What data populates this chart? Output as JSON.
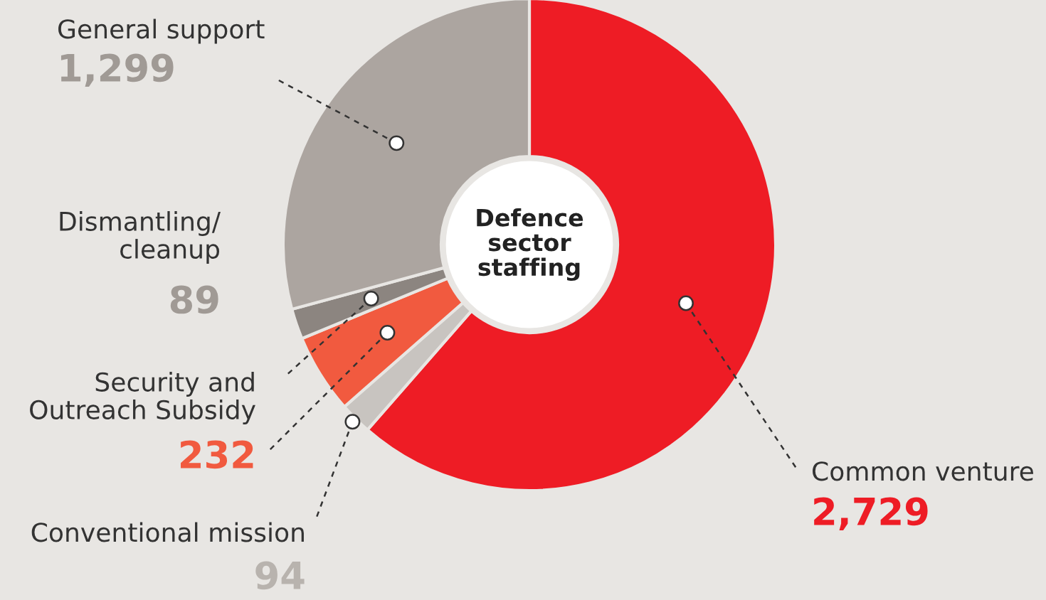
{
  "chart_data": {
    "type": "donut",
    "title": "Defence sector staffing",
    "categories": [
      "Common venture",
      "Conventional mission",
      "Security and\nOutreach Subsidy",
      "Dismantling/\ncleanup",
      "General support"
    ],
    "values": [
      2729,
      94,
      232,
      89,
      1299
    ],
    "value_labels": [
      "2,729",
      "94",
      "232",
      "89",
      "1,299"
    ],
    "colors": [
      "#ee1c25",
      "#c8c4c0",
      "#f15a3f",
      "#8c8580",
      "#aca5a0"
    ]
  }
}
